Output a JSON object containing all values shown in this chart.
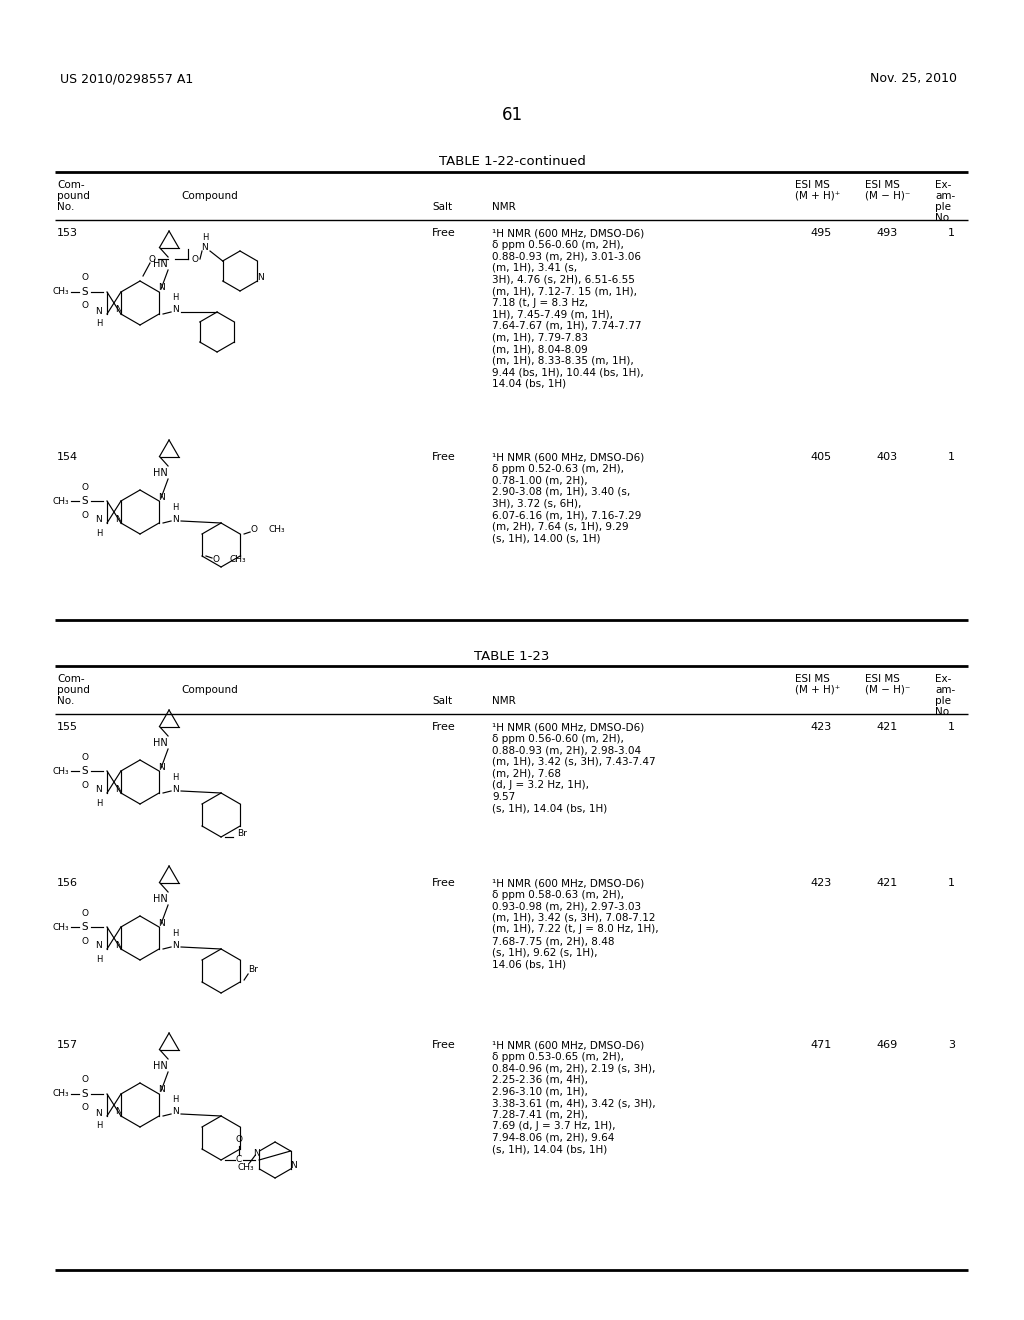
{
  "bg_color": "#ffffff",
  "header_left": "US 2010/0298557 A1",
  "header_right": "Nov. 25, 2010",
  "page_number": "61",
  "table1_title": "TABLE 1-22-continued",
  "table2_title": "TABLE 1-23",
  "rows_table1": [
    {
      "no": "153",
      "salt": "Free",
      "nmr": "¹H NMR (600 MHz, DMSO-D6)\nδ ppm 0.56-0.60 (m, 2H),\n0.88-0.93 (m, 2H), 3.01-3.06\n(m, 1H), 3.41 (s,\n3H), 4.76 (s, 2H), 6.51-6.55\n(m, 1H), 7.12-7. 15 (m, 1H),\n7.18 (t, J = 8.3 Hz,\n1H), 7.45-7.49 (m, 1H),\n7.64-7.67 (m, 1H), 7.74-7.77\n(m, 1H), 7.79-7.83\n(m, 1H), 8.04-8.09\n(m, 1H), 8.33-8.35 (m, 1H),\n9.44 (bs, 1H), 10.44 (bs, 1H),\n14.04 (bs, 1H)",
      "esi_pos": "495",
      "esi_neg": "493",
      "example": "1"
    },
    {
      "no": "154",
      "salt": "Free",
      "nmr": "¹H NMR (600 MHz, DMSO-D6)\nδ ppm 0.52-0.63 (m, 2H),\n0.78-1.00 (m, 2H),\n2.90-3.08 (m, 1H), 3.40 (s,\n3H), 3.72 (s, 6H),\n6.07-6.16 (m, 1H), 7.16-7.29\n(m, 2H), 7.64 (s, 1H), 9.29\n(s, 1H), 14.00 (s, 1H)",
      "esi_pos": "405",
      "esi_neg": "403",
      "example": "1"
    }
  ],
  "rows_table2": [
    {
      "no": "155",
      "salt": "Free",
      "nmr": "¹H NMR (600 MHz, DMSO-D6)\nδ ppm 0.56-0.60 (m, 2H),\n0.88-0.93 (m, 2H), 2.98-3.04\n(m, 1H), 3.42 (s, 3H), 7.43-7.47\n(m, 2H), 7.68\n(d, J = 3.2 Hz, 1H),\n9.57\n(s, 1H), 14.04 (bs, 1H)",
      "esi_pos": "423",
      "esi_neg": "421",
      "example": "1"
    },
    {
      "no": "156",
      "salt": "Free",
      "nmr": "¹H NMR (600 MHz, DMSO-D6)\nδ ppm 0.58-0.63 (m, 2H),\n0.93-0.98 (m, 2H), 2.97-3.03\n(m, 1H), 3.42 (s, 3H), 7.08-7.12\n(m, 1H), 7.22 (t, J = 8.0 Hz, 1H),\n7.68-7.75 (m, 2H), 8.48\n(s, 1H), 9.62 (s, 1H),\n14.06 (bs, 1H)",
      "esi_pos": "423",
      "esi_neg": "421",
      "example": "1"
    },
    {
      "no": "157",
      "salt": "Free",
      "nmr": "¹H NMR (600 MHz, DMSO-D6)\nδ ppm 0.53-0.65 (m, 2H),\n0.84-0.96 (m, 2H), 2.19 (s, 3H),\n2.25-2.36 (m, 4H),\n2.96-3.10 (m, 1H),\n3.38-3.61 (m, 4H), 3.42 (s, 3H),\n7.28-7.41 (m, 2H),\n7.69 (d, J = 3.7 Hz, 1H),\n7.94-8.06 (m, 2H), 9.64\n(s, 1H), 14.04 (bs, 1H)",
      "esi_pos": "471",
      "esi_neg": "469",
      "example": "3"
    }
  ]
}
